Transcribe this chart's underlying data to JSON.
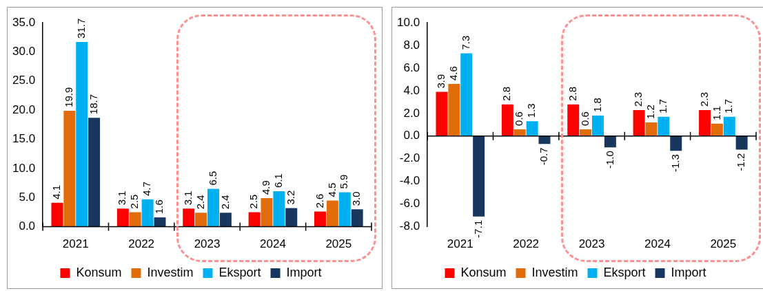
{
  "chart_data": [
    {
      "type": "bar",
      "categories": [
        "2021",
        "2022",
        "2023",
        "2024",
        "2025"
      ],
      "ylim": [
        0,
        35
      ],
      "yticks": [
        {
          "value": 0,
          "label": "0.0"
        },
        {
          "value": 5,
          "label": "5.0"
        },
        {
          "value": 10,
          "label": "10.0"
        },
        {
          "value": 15,
          "label": "15.0"
        },
        {
          "value": 20,
          "label": "20.0"
        },
        {
          "value": 25,
          "label": "25.0"
        },
        {
          "value": 30,
          "label": "30.0"
        },
        {
          "value": 35,
          "label": "35.0"
        }
      ],
      "legend": "bottom",
      "series": [
        {
          "name": "Konsum",
          "color": "#ff0000",
          "values": [
            4.1,
            3.1,
            3.1,
            2.5,
            2.6
          ],
          "value_labels": [
            "4.1",
            "3.1",
            "3.1",
            "2.5",
            "2.6"
          ]
        },
        {
          "name": "Investim",
          "color": "#e36c0a",
          "values": [
            19.9,
            2.5,
            2.4,
            4.9,
            4.5
          ],
          "value_labels": [
            "19.9",
            "2.5",
            "2.4",
            "4.9",
            "4.5"
          ]
        },
        {
          "name": "Eksport",
          "color": "#00b0f0",
          "values": [
            31.7,
            4.7,
            6.5,
            6.1,
            5.9
          ],
          "value_labels": [
            "31.7",
            "4.7",
            "6.5",
            "6.1",
            "5.9"
          ]
        },
        {
          "name": "Import",
          "color": "#17375e",
          "values": [
            18.7,
            1.6,
            2.4,
            3.2,
            3.0
          ],
          "value_labels": [
            "18.7",
            "1.6",
            "2.4",
            "3.2",
            "3.0"
          ]
        }
      ]
    },
    {
      "type": "bar",
      "categories": [
        "2021",
        "2022",
        "2023",
        "2024",
        "2025"
      ],
      "ylim": [
        -8,
        10
      ],
      "yticks": [
        {
          "value": -8,
          "label": "-8.0"
        },
        {
          "value": -6,
          "label": "-6.0"
        },
        {
          "value": -4,
          "label": "-4.0"
        },
        {
          "value": -2,
          "label": "-2.0"
        },
        {
          "value": 0,
          "label": "0.0"
        },
        {
          "value": 2,
          "label": "2.0"
        },
        {
          "value": 4,
          "label": "4.0"
        },
        {
          "value": 6,
          "label": "6.0"
        },
        {
          "value": 8,
          "label": "8.0"
        },
        {
          "value": 10,
          "label": "10.0"
        }
      ],
      "legend": "bottom",
      "series": [
        {
          "name": "Konsum",
          "color": "#ff0000",
          "values": [
            3.9,
            2.8,
            2.8,
            2.3,
            2.3
          ],
          "value_labels": [
            "3.9",
            "2.8",
            "2.8",
            "2.3",
            "2.3"
          ]
        },
        {
          "name": "Investim",
          "color": "#e36c0a",
          "values": [
            4.6,
            0.6,
            0.6,
            1.2,
            1.1
          ],
          "value_labels": [
            "4.6",
            "0.6",
            "0.6",
            "1.2",
            "1.1"
          ]
        },
        {
          "name": "Eksport",
          "color": "#00b0f0",
          "values": [
            7.3,
            1.3,
            1.8,
            1.7,
            1.7
          ],
          "value_labels": [
            "7.3",
            "1.3",
            "1.8",
            "1.7",
            "1.7"
          ]
        },
        {
          "name": "Import",
          "color": "#17375e",
          "values": [
            -7.1,
            -0.7,
            -1.0,
            -1.3,
            -1.2
          ],
          "value_labels": [
            "-7.1",
            "-0.7",
            "-1.0",
            "-1.3",
            "-1.2"
          ]
        }
      ]
    }
  ]
}
